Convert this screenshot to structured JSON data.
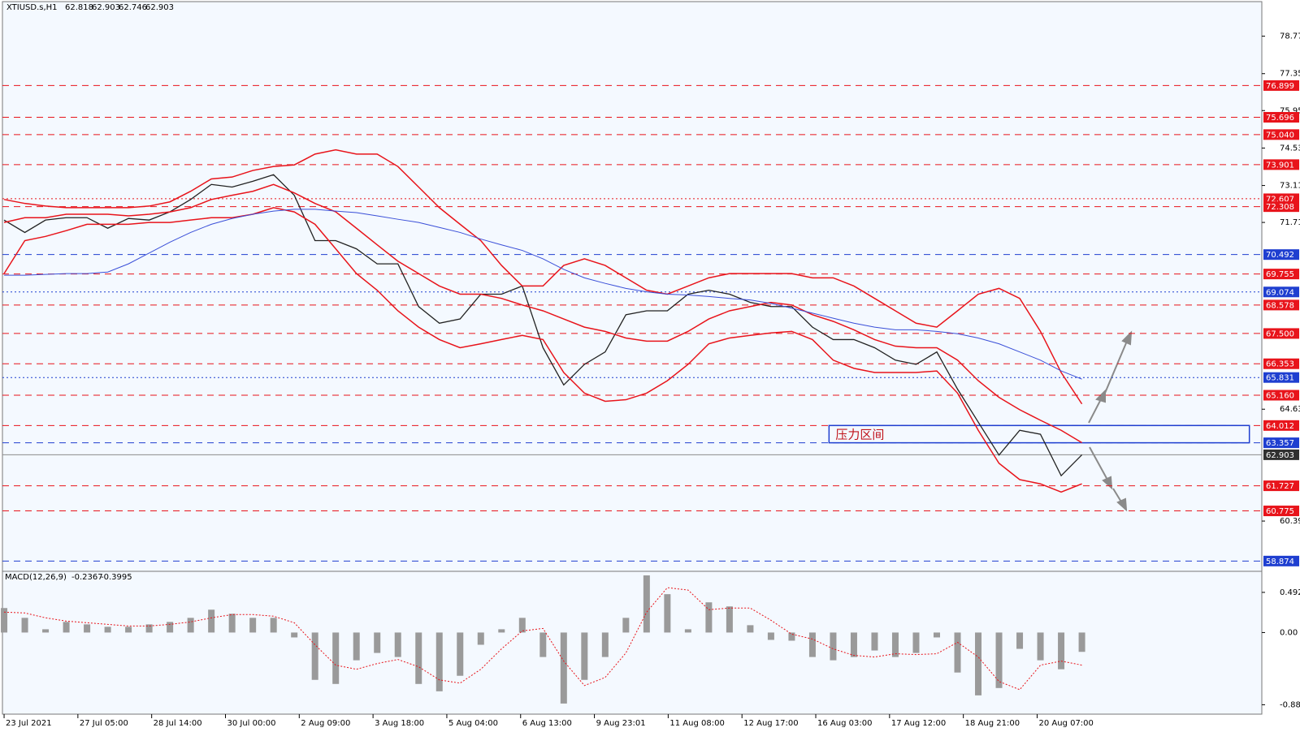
{
  "chart_data": [
    {
      "type": "line",
      "symbol": "XTIUSD.s,H1",
      "ohlc": [
        62.818,
        62.903,
        62.746,
        62.903
      ],
      "annotation": "压力区间",
      "zone": {
        "x": [
          39.8,
          60.08
        ],
        "y": [
          63.357,
          64.012
        ],
        "color": "#1f3fd0"
      },
      "xlim": [
        -0.08,
        60.68
      ],
      "ylim": [
        58.3,
        80.08
      ],
      "x": [
        0,
        1,
        2,
        3,
        4,
        5,
        6,
        7,
        8,
        9,
        10,
        11,
        12,
        13,
        14,
        15,
        16,
        17,
        18,
        19,
        20,
        21,
        22,
        23,
        24,
        25,
        26,
        27,
        28,
        29,
        30,
        31,
        32,
        33,
        34,
        35,
        36,
        37,
        38,
        39,
        40,
        41,
        42,
        43,
        44,
        45,
        46,
        47,
        48,
        49,
        50,
        51,
        52
      ],
      "xticks": [
        {
          "value": 0,
          "label": "23 Jul 2021"
        },
        {
          "value": 3.56,
          "label": "27 Jul 05:00"
        },
        {
          "value": 7.12,
          "label": "28 Jul 14:00"
        },
        {
          "value": 10.68,
          "label": "30 Jul 00:00"
        },
        {
          "value": 14.24,
          "label": "2 Aug 09:00"
        },
        {
          "value": 17.8,
          "label": "3 Aug 18:00"
        },
        {
          "value": 21.36,
          "label": "5 Aug 04:00"
        },
        {
          "value": 24.92,
          "label": "6 Aug 13:00"
        },
        {
          "value": 28.48,
          "label": "9 Aug 23:01"
        },
        {
          "value": 32.04,
          "label": "11 Aug 08:00"
        },
        {
          "value": 35.6,
          "label": "12 Aug 17:00"
        },
        {
          "value": 39.16,
          "label": "16 Aug 03:00"
        },
        {
          "value": 42.72,
          "label": "17 Aug 12:00"
        },
        {
          "value": 46.28,
          "label": "18 Aug 21:00"
        },
        {
          "value": 49.84,
          "label": "20 Aug 07:00"
        }
      ],
      "yticks": [
        {
          "value": 78.77,
          "label": "78.770"
        },
        {
          "value": 77.35,
          "label": "77.350"
        },
        {
          "value": 75.95,
          "label": "75.950"
        },
        {
          "value": 74.53,
          "label": "74.530"
        },
        {
          "value": 73.11,
          "label": "73.110"
        },
        {
          "value": 71.71,
          "label": "71.710"
        },
        {
          "value": 64.63,
          "label": "64.630"
        },
        {
          "value": 60.39,
          "label": "60.390"
        }
      ],
      "levels": [
        {
          "value": 76.899,
          "color": "#e8141b",
          "style": "dash"
        },
        {
          "value": 75.696,
          "color": "#e8141b",
          "style": "dash"
        },
        {
          "value": 75.04,
          "label": "75.040",
          "color": "#e8141b",
          "style": "dash"
        },
        {
          "value": 73.901,
          "color": "#e8141b",
          "style": "dash"
        },
        {
          "value": 72.607,
          "color": "#e8141b",
          "style": "dot"
        },
        {
          "value": 72.308,
          "color": "#e8141b",
          "style": "dash"
        },
        {
          "value": 70.492,
          "color": "#1f3fd0",
          "style": "dash"
        },
        {
          "value": 69.755,
          "color": "#e8141b",
          "style": "dash"
        },
        {
          "value": 69.074,
          "color": "#1f3fd0",
          "style": "dot"
        },
        {
          "value": 68.578,
          "color": "#e8141b",
          "style": "dash"
        },
        {
          "value": 67.5,
          "label": "67.500",
          "color": "#e8141b",
          "style": "dash"
        },
        {
          "value": 66.353,
          "color": "#e8141b",
          "style": "dash"
        },
        {
          "value": 65.831,
          "color": "#1f3fd0",
          "style": "dot"
        },
        {
          "value": 65.16,
          "label": "65.160",
          "color": "#e8141b",
          "style": "dash"
        },
        {
          "value": 64.012,
          "color": "#e8141b",
          "style": "dash"
        },
        {
          "value": 63.357,
          "color": "#1f3fd0",
          "style": "dash"
        },
        {
          "value": 62.903,
          "color": "#8c8c8c",
          "style": "solid"
        },
        {
          "value": 61.727,
          "color": "#e8141b",
          "style": "dash"
        },
        {
          "value": 60.775,
          "color": "#e8141b",
          "style": "dash"
        },
        {
          "value": 58.874,
          "color": "#1f3fd0",
          "style": "dash"
        }
      ],
      "series": [
        {
          "color": "#222222",
          "width": 1.3,
          "values": [
            71.8,
            71.33,
            71.8,
            71.89,
            71.89,
            71.49,
            71.86,
            71.8,
            72.11,
            72.58,
            73.15,
            73.05,
            73.27,
            73.52,
            72.74,
            71.02,
            71.02,
            70.71,
            70.14,
            70.14,
            68.52,
            67.89,
            68.05,
            68.99,
            68.99,
            69.3,
            66.96,
            65.55,
            66.33,
            66.8,
            68.21,
            68.36,
            68.36,
            68.99,
            69.14,
            68.99,
            68.68,
            68.52,
            68.52,
            67.74,
            67.27,
            67.27,
            66.96,
            66.49,
            66.33,
            66.8,
            65.39,
            64.14,
            62.89,
            63.83,
            63.68,
            62.11,
            62.9
          ]
        },
        {
          "color": "#e8141b",
          "width": 1.5,
          "values": [
            72.58,
            72.43,
            72.33,
            72.27,
            72.27,
            72.27,
            72.27,
            72.33,
            72.49,
            72.89,
            73.36,
            73.43,
            73.68,
            73.83,
            73.89,
            74.3,
            74.46,
            74.3,
            74.3,
            73.83,
            73.05,
            72.27,
            71.64,
            71.02,
            70.08,
            69.3,
            69.3,
            70.08,
            70.33,
            70.08,
            69.61,
            69.14,
            68.99,
            69.3,
            69.61,
            69.77,
            69.77,
            69.77,
            69.77,
            69.61,
            69.61,
            69.3,
            68.83,
            68.36,
            67.89,
            67.74,
            68.36,
            68.99,
            69.21,
            68.83,
            67.58,
            66.02,
            64.83
          ]
        },
        {
          "color": "#e8141b",
          "width": 1.5,
          "values": [
            71.71,
            71.89,
            71.89,
            72.02,
            72.02,
            72.02,
            71.96,
            72.02,
            72.11,
            72.27,
            72.58,
            72.74,
            72.89,
            73.15,
            72.83,
            72.43,
            72.11,
            71.49,
            70.86,
            70.24,
            69.77,
            69.3,
            68.99,
            68.99,
            68.83,
            68.58,
            68.36,
            68.05,
            67.74,
            67.58,
            67.33,
            67.21,
            67.21,
            67.58,
            68.05,
            68.36,
            68.52,
            68.68,
            68.58,
            68.21,
            67.96,
            67.64,
            67.27,
            67.02,
            66.96,
            66.96,
            66.49,
            65.71,
            65.08,
            64.61,
            64.21,
            63.83,
            63.36
          ]
        },
        {
          "color": "#e8141b",
          "width": 1.5,
          "values": [
            69.77,
            71.02,
            71.18,
            71.4,
            71.64,
            71.64,
            71.64,
            71.71,
            71.71,
            71.8,
            71.89,
            71.89,
            72.02,
            72.27,
            72.11,
            71.64,
            70.71,
            69.77,
            69.14,
            68.36,
            67.74,
            67.27,
            66.96,
            67.11,
            67.27,
            67.43,
            67.27,
            66.02,
            65.24,
            64.93,
            64.99,
            65.24,
            65.71,
            66.33,
            67.11,
            67.33,
            67.43,
            67.52,
            67.58,
            67.27,
            66.49,
            66.18,
            66.02,
            66.02,
            66.02,
            66.08,
            65.24,
            63.83,
            62.58,
            61.96,
            61.8,
            61.49,
            61.8
          ]
        },
        {
          "color": "#3a4fd8",
          "width": 1,
          "values": [
            69.71,
            69.71,
            69.74,
            69.77,
            69.77,
            69.83,
            70.14,
            70.55,
            70.96,
            71.33,
            71.64,
            71.86,
            72.02,
            72.14,
            72.21,
            72.21,
            72.14,
            72.08,
            71.96,
            71.83,
            71.71,
            71.52,
            71.33,
            71.08,
            70.86,
            70.65,
            70.33,
            69.93,
            69.61,
            69.4,
            69.21,
            69.08,
            68.99,
            68.96,
            68.9,
            68.83,
            68.77,
            68.64,
            68.46,
            68.27,
            68.08,
            67.89,
            67.74,
            67.64,
            67.64,
            67.58,
            67.49,
            67.33,
            67.11,
            66.8,
            66.49,
            66.08,
            65.77
          ]
        }
      ]
    },
    {
      "type": "macd",
      "label": "MACD(12,26,9)",
      "main_value": -0.2367,
      "signal_value": -0.3995,
      "ylim": [
        -1.0,
        0.75
      ],
      "yticks": [
        0.492,
        {
          "value": 0,
          "label": "0.00"
        },
        -0.8848
      ],
      "color": "#9a9a9a",
      "signal_color": "#e8141b",
      "values": [
        0.3,
        0.18,
        0.04,
        0.13,
        0.1,
        0.07,
        0.07,
        0.1,
        0.13,
        0.18,
        0.28,
        0.23,
        0.18,
        0.18,
        -0.06,
        -0.58,
        -0.63,
        -0.34,
        -0.25,
        -0.3,
        -0.63,
        -0.72,
        -0.53,
        -0.15,
        0.04,
        0.18,
        -0.3,
        -0.87,
        -0.58,
        -0.3,
        0.18,
        0.7,
        0.47,
        0.04,
        0.37,
        0.32,
        0.09,
        -0.09,
        -0.1,
        -0.3,
        -0.34,
        -0.3,
        -0.22,
        -0.3,
        -0.25,
        -0.06,
        -0.49,
        -0.77,
        -0.68,
        -0.2,
        -0.34,
        -0.45,
        -0.2367
      ],
      "signal": [
        0.25,
        0.24,
        0.18,
        0.14,
        0.12,
        0.1,
        0.08,
        0.08,
        0.1,
        0.13,
        0.18,
        0.22,
        0.22,
        0.2,
        0.12,
        -0.15,
        -0.4,
        -0.45,
        -0.38,
        -0.33,
        -0.42,
        -0.58,
        -0.62,
        -0.45,
        -0.2,
        0.02,
        0.05,
        -0.35,
        -0.65,
        -0.55,
        -0.25,
        0.25,
        0.55,
        0.52,
        0.28,
        0.3,
        0.3,
        0.15,
        -0.02,
        -0.08,
        -0.2,
        -0.28,
        -0.3,
        -0.26,
        -0.27,
        -0.26,
        -0.12,
        -0.3,
        -0.6,
        -0.7,
        -0.4,
        -0.35,
        -0.3995
      ]
    }
  ]
}
